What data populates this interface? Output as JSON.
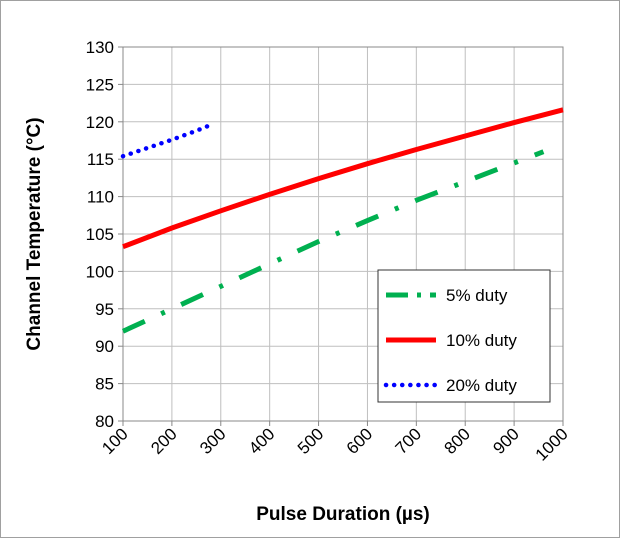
{
  "chart_data": {
    "type": "line",
    "x_label": "Pulse Duration (µs)",
    "y_label": "Channel Temperature (°C)",
    "xlim": [
      100,
      1000
    ],
    "xticks": [
      100,
      200,
      300,
      400,
      500,
      600,
      700,
      800,
      900,
      1000
    ],
    "ylim": [
      80,
      130
    ],
    "yticks": [
      80,
      85,
      90,
      95,
      100,
      105,
      110,
      115,
      120,
      125,
      130
    ],
    "grid": true,
    "legend": "lower right",
    "series": [
      {
        "name": "5% duty",
        "color": "#00b050",
        "style": "dash-dot",
        "x": [
          100,
          200,
          300,
          400,
          500,
          600,
          700,
          800,
          900,
          960
        ],
        "values": [
          92,
          95,
          98,
          101,
          104,
          106.8,
          109.5,
          112,
          114.5,
          116
        ]
      },
      {
        "name": "10% duty",
        "color": "#ff0000",
        "style": "solid",
        "x": [
          100,
          200,
          300,
          400,
          500,
          600,
          700,
          800,
          900,
          1000
        ],
        "values": [
          103.3,
          105.8,
          108.1,
          110.3,
          112.4,
          114.4,
          116.3,
          118.1,
          119.9,
          121.6
        ]
      },
      {
        "name": "20% duty",
        "color": "#0000ff",
        "style": "dot",
        "x": [
          100,
          150,
          200,
          250,
          280
        ],
        "values": [
          115.4,
          116.5,
          117.6,
          118.8,
          119.6
        ]
      }
    ]
  }
}
